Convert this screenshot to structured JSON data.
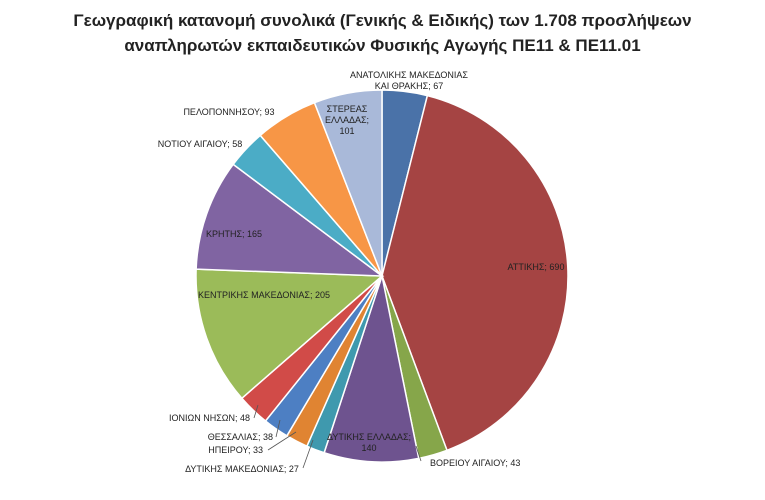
{
  "chart_data": {
    "type": "pie",
    "title_lines": [
      "Γεωγραφική κατανομή συνολικά (Γενικής & Ειδικής) των 1.708  προσλήψεων",
      "αναπληρωτών εκπαιδευτικών Φυσικής Αγωγής ΠΕ11 & ΠΕ11.01"
    ],
    "slices": [
      {
        "label": "ΑΝΑΤΟΛΙΚΗΣ ΜΑΚΕΔΟΝΙΑΣ ΚΑΙ ΘΡΑΚΗΣ",
        "value": 67,
        "color": "#4a72a8",
        "label_lines": [
          "ΑΝΑΤΟΛΙΚΗΣ ΜΑΚΕΔΟΝΙΑΣ",
          "ΚΑΙ ΘΡΑΚΗΣ; 67"
        ]
      },
      {
        "label": "ΑΤΤΙΚΗΣ",
        "value": 690,
        "color": "#a54443",
        "label_lines": [
          "ΑΤΤΙΚΗΣ; 690"
        ]
      },
      {
        "label": "ΒΟΡΕΙΟΥ ΑΙΓΑΙΟΥ",
        "value": 43,
        "color": "#86a64a",
        "label_lines": [
          "ΒΟΡΕΙΟΥ ΑΙΓΑΙΟΥ; 43"
        ]
      },
      {
        "label": "ΔΥΤΙΚΗΣ ΕΛΛΑΔΑΣ",
        "value": 140,
        "color": "#6e538f",
        "label_lines": [
          "ΔΥΤΙΚΗΣ ΕΛΛΑΔΑΣ;",
          "140"
        ]
      },
      {
        "label": "ΔΥΤΙΚΗΣ ΜΑΚΕΔΟΝΙΑΣ",
        "value": 27,
        "color": "#3f99ae",
        "label_lines": [
          "ΔΥΤΙΚΗΣ ΜΑΚΕΔΟΝΙΑΣ; 27"
        ]
      },
      {
        "label": "ΗΠΕΙΡΟΥ",
        "value": 33,
        "color": "#e08432",
        "label_lines": [
          "ΗΠΕΙΡΟΥ; 33"
        ]
      },
      {
        "label": "ΘΕΣΣΑΛΙΑΣ",
        "value": 38,
        "color": "#4d7fc3",
        "label_lines": [
          "ΘΕΣΣΑΛΙΑΣ; 38"
        ]
      },
      {
        "label": "ΙΟΝΙΩΝ ΝΗΣΩΝ",
        "value": 48,
        "color": "#d14b48",
        "label_lines": [
          "ΙΟΝΙΩΝ ΝΗΣΩΝ; 48"
        ]
      },
      {
        "label": "ΚΕΝΤΡΙΚΗΣ ΜΑΚΕΔΟΝΙΑΣ",
        "value": 205,
        "color": "#9bbb59",
        "label_lines": [
          "ΚΕΝΤΡΙΚΗΣ ΜΑΚΕΔΟΝΙΑΣ; 205"
        ]
      },
      {
        "label": "ΚΡΗΤΗΣ",
        "value": 165,
        "color": "#8064a2",
        "label_lines": [
          "ΚΡΗΤΗΣ; 165"
        ]
      },
      {
        "label": "ΝΟΤΙΟΥ ΑΙΓΑΙΟΥ",
        "value": 58,
        "color": "#4bacc6",
        "label_lines": [
          "ΝΟΤΙΟΥ ΑΙΓΑΙΟΥ; 58"
        ]
      },
      {
        "label": "ΠΕΛΟΠΟΝΝΗΣΟΥ",
        "value": 93,
        "color": "#f79646",
        "label_lines": [
          "ΠΕΛΟΠΟΝΝΗΣΟΥ; 93"
        ]
      },
      {
        "label": "ΣΤΕΡΕΑΣ ΕΛΛΑΔΑΣ",
        "value": 101,
        "color": "#a9b9d9",
        "label_lines": [
          "ΣΤΕΡΕΑΣ",
          "ΕΛΛΑΔΑΣ;",
          "101"
        ]
      }
    ],
    "total": 1708,
    "legend": "none"
  }
}
